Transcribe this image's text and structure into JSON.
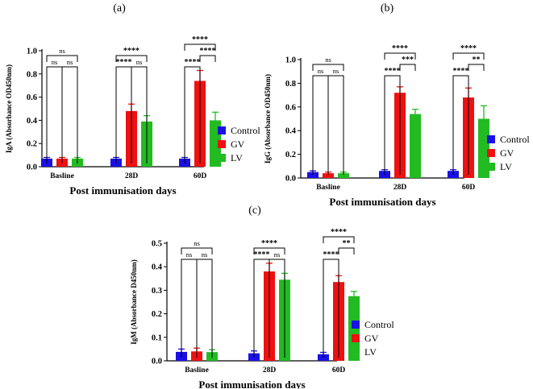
{
  "colors": {
    "control": "#1a10e6",
    "gv": "#ee1111",
    "lv": "#22bb22"
  },
  "chart_data": [
    {
      "type": "bar",
      "panel_label": "(a)",
      "title": "",
      "xlabel": "Post immunisation days",
      "ylabel": "IgA (Absorbance OD450nm)",
      "categories": [
        "Basline",
        "28D",
        "60D"
      ],
      "ylim": [
        0,
        1.0
      ],
      "yticks": [
        "0.0",
        "0.2",
        "0.4",
        "0.6",
        "0.8",
        "1.0"
      ],
      "ytick_values": [
        0,
        0.2,
        0.4,
        0.6,
        0.8,
        1.0
      ],
      "series": [
        {
          "name": "Control",
          "values": [
            0.07,
            0.07,
            0.07
          ],
          "errors": [
            0.01,
            0.01,
            0.01
          ]
        },
        {
          "name": "GV",
          "values": [
            0.07,
            0.48,
            0.74
          ],
          "errors": [
            0.01,
            0.06,
            0.09
          ]
        },
        {
          "name": "LV",
          "values": [
            0.07,
            0.39,
            0.4
          ],
          "errors": [
            0.01,
            0.05,
            0.07
          ]
        }
      ],
      "significance": [
        {
          "group": 0,
          "from": 0,
          "to": 1,
          "level": 1,
          "label": "ns"
        },
        {
          "group": 0,
          "from": 1,
          "to": 2,
          "level": 1,
          "label": "ns"
        },
        {
          "group": 0,
          "from": 0,
          "to": 2,
          "level": 2,
          "label": "ns"
        },
        {
          "group": 1,
          "from": 0,
          "to": 1,
          "level": 1,
          "label": "****"
        },
        {
          "group": 1,
          "from": 1,
          "to": 2,
          "level": 1,
          "label": "ns"
        },
        {
          "group": 1,
          "from": 0,
          "to": 2,
          "level": 2,
          "label": "****"
        },
        {
          "group": 2,
          "from": 0,
          "to": 1,
          "level": 1,
          "label": "****"
        },
        {
          "group": 2,
          "from": 1,
          "to": 2,
          "level": 2,
          "label": "****"
        },
        {
          "group": 2,
          "from": 0,
          "to": 2,
          "level": 3,
          "label": "****"
        }
      ],
      "legend": [
        "Control",
        "GV",
        "LV"
      ]
    },
    {
      "type": "bar",
      "panel_label": "(b)",
      "title": "",
      "xlabel": "Post immunisation days",
      "ylabel": "IgG (Absorbance OD450nm)",
      "categories": [
        "Basline",
        "28D",
        "60D"
      ],
      "ylim": [
        0,
        1.0
      ],
      "yticks": [
        "0.0",
        "0.2",
        "0.4",
        "0.6",
        "0.8",
        "1.0"
      ],
      "ytick_values": [
        0,
        0.2,
        0.4,
        0.6,
        0.8,
        1.0
      ],
      "series": [
        {
          "name": "Control",
          "values": [
            0.05,
            0.06,
            0.06
          ],
          "errors": [
            0.01,
            0.01,
            0.01
          ]
        },
        {
          "name": "GV",
          "values": [
            0.04,
            0.72,
            0.68
          ],
          "errors": [
            0.01,
            0.05,
            0.08
          ]
        },
        {
          "name": "LV",
          "values": [
            0.04,
            0.54,
            0.5
          ],
          "errors": [
            0.01,
            0.04,
            0.11
          ]
        }
      ],
      "significance": [
        {
          "group": 0,
          "from": 0,
          "to": 1,
          "level": 1,
          "label": "ns"
        },
        {
          "group": 0,
          "from": 1,
          "to": 2,
          "level": 1,
          "label": "ns"
        },
        {
          "group": 0,
          "from": 0,
          "to": 2,
          "level": 2,
          "label": "ns"
        },
        {
          "group": 1,
          "from": 0,
          "to": 1,
          "level": 1,
          "label": "****"
        },
        {
          "group": 1,
          "from": 1,
          "to": 2,
          "level": 2,
          "label": "***"
        },
        {
          "group": 1,
          "from": 0,
          "to": 2,
          "level": 3,
          "label": "****"
        },
        {
          "group": 2,
          "from": 0,
          "to": 1,
          "level": 1,
          "label": "****"
        },
        {
          "group": 2,
          "from": 1,
          "to": 2,
          "level": 2,
          "label": "**"
        },
        {
          "group": 2,
          "from": 0,
          "to": 2,
          "level": 3,
          "label": "****"
        }
      ],
      "legend": [
        "Control",
        "GV",
        "LV"
      ]
    },
    {
      "type": "bar",
      "panel_label": "(c)",
      "title": "",
      "xlabel": "Post immunisation days",
      "ylabel": "IgM (Absorbance D450nm)",
      "categories": [
        "Basline",
        "28D",
        "60D"
      ],
      "ylim": [
        0,
        0.5
      ],
      "yticks": [
        "0.0",
        "0.1",
        "0.2",
        "0.3",
        "0.4",
        "0.5"
      ],
      "ytick_values": [
        0,
        0.1,
        0.2,
        0.3,
        0.4,
        0.5
      ],
      "series": [
        {
          "name": "Control",
          "values": [
            0.038,
            0.032,
            0.028
          ],
          "errors": [
            0.012,
            0.01,
            0.008
          ]
        },
        {
          "name": "GV",
          "values": [
            0.04,
            0.38,
            0.335
          ],
          "errors": [
            0.014,
            0.035,
            0.027
          ]
        },
        {
          "name": "LV",
          "values": [
            0.037,
            0.345,
            0.275
          ],
          "errors": [
            0.01,
            0.027,
            0.02
          ]
        }
      ],
      "significance": [
        {
          "group": 0,
          "from": 0,
          "to": 1,
          "level": 1,
          "label": "ns"
        },
        {
          "group": 0,
          "from": 1,
          "to": 2,
          "level": 1,
          "label": "ns"
        },
        {
          "group": 0,
          "from": 0,
          "to": 2,
          "level": 2,
          "label": "ns"
        },
        {
          "group": 1,
          "from": 0,
          "to": 1,
          "level": 1,
          "label": "****"
        },
        {
          "group": 1,
          "from": 1,
          "to": 2,
          "level": 1,
          "label": "ns"
        },
        {
          "group": 1,
          "from": 0,
          "to": 2,
          "level": 2,
          "label": "****"
        },
        {
          "group": 2,
          "from": 0,
          "to": 1,
          "level": 1,
          "label": "****"
        },
        {
          "group": 2,
          "from": 1,
          "to": 2,
          "level": 2,
          "label": "**"
        },
        {
          "group": 2,
          "from": 0,
          "to": 2,
          "level": 3,
          "label": "****"
        }
      ],
      "legend": [
        "Control",
        "GV",
        "LV"
      ]
    }
  ]
}
